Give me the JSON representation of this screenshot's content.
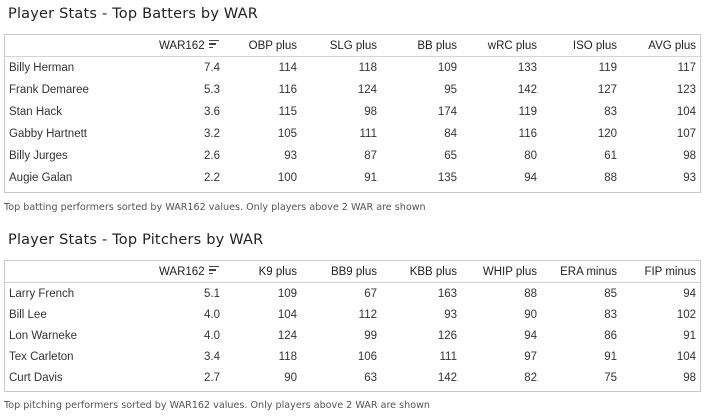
{
  "batters": {
    "title": "Player Stats - Top Batters by WAR",
    "columns": [
      "",
      "WAR162",
      "OBP plus",
      "SLG plus",
      "BB plus",
      "wRC plus",
      "ISO plus",
      "AVG plus"
    ],
    "rows": [
      [
        "Billy Herman",
        "7.4",
        "114",
        "118",
        "109",
        "133",
        "119",
        "117"
      ],
      [
        "Frank Demaree",
        "5.3",
        "116",
        "124",
        "95",
        "142",
        "127",
        "123"
      ],
      [
        "Stan Hack",
        "3.6",
        "115",
        "98",
        "174",
        "119",
        "83",
        "104"
      ],
      [
        "Gabby Hartnett",
        "3.2",
        "105",
        "111",
        "84",
        "116",
        "120",
        "107"
      ],
      [
        "Billy Jurges",
        "2.6",
        "93",
        "87",
        "65",
        "80",
        "61",
        "98"
      ],
      [
        "Augie Galan",
        "2.2",
        "100",
        "91",
        "135",
        "94",
        "88",
        "93"
      ]
    ],
    "caption": "Top batting performers sorted by WAR162 values. Only players above 2 WAR are shown"
  },
  "pitchers": {
    "title": "Player Stats - Top Pitchers by WAR",
    "columns": [
      "",
      "WAR162",
      "K9 plus",
      "BB9 plus",
      "KBB plus",
      "WHIP plus",
      "ERA minus",
      "FIP minus"
    ],
    "rows": [
      [
        "Larry French",
        "5.1",
        "109",
        "67",
        "163",
        "88",
        "85",
        "94"
      ],
      [
        "Bill Lee",
        "4.0",
        "104",
        "112",
        "93",
        "90",
        "83",
        "102"
      ],
      [
        "Lon Warneke",
        "4.0",
        "124",
        "99",
        "126",
        "94",
        "86",
        "91"
      ],
      [
        "Tex Carleton",
        "3.4",
        "118",
        "106",
        "111",
        "97",
        "91",
        "104"
      ],
      [
        "Curt Davis",
        "2.7",
        "90",
        "63",
        "142",
        "82",
        "75",
        "98"
      ]
    ],
    "caption": "Top pitching performers sorted by WAR162 values. Only players above 2 WAR are shown"
  }
}
